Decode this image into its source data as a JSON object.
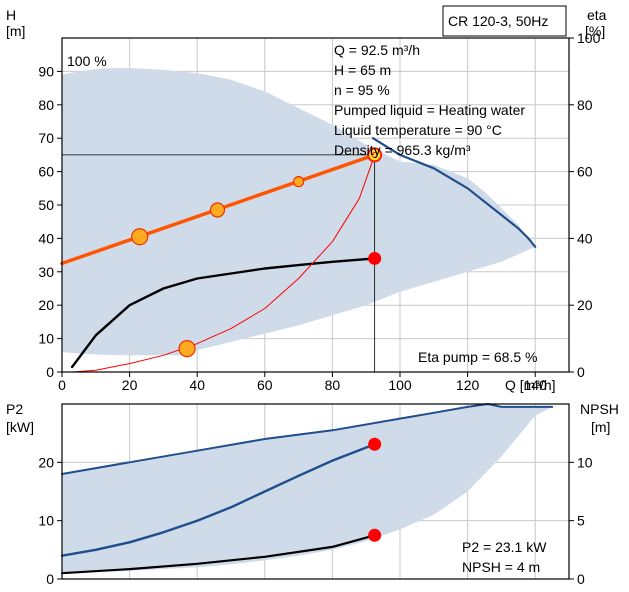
{
  "chart_data": [
    {
      "type": "line",
      "title": "CR 120-3, 50Hz",
      "xlabel": "Q [m³/h]",
      "ylabel_left": [
        "H",
        "[m]"
      ],
      "ylabel_right": [
        "eta",
        "[%]"
      ],
      "xlim": [
        0,
        150
      ],
      "ylim_left": [
        0,
        100
      ],
      "ylim_right": [
        0,
        100
      ],
      "x_ticks": [
        "0",
        "20",
        "40",
        "60",
        "80",
        "100",
        "120",
        "140"
      ],
      "y_ticks_left": [
        "0",
        "10",
        "20",
        "30",
        "40",
        "50",
        "60",
        "70",
        "80",
        "90"
      ],
      "y_ticks_right": [
        "0",
        "20",
        "40",
        "60",
        "80",
        "100"
      ],
      "grid": true,
      "speed_label": "100 %",
      "operating_point": {
        "lines": [
          "Q = 92.5 m³/h",
          "H = 65 m",
          "n = 95 %",
          "Pumped liquid = Heating water",
          "Liquid temperature = 90 °C",
          "Density = 965.3 kg/m³"
        ],
        "q": 92.5,
        "h": 65
      },
      "eta_pump_label": "Eta pump = 68.5 %",
      "band": {
        "upper": [
          [
            0,
            89
          ],
          [
            5,
            90
          ],
          [
            10,
            90.7
          ],
          [
            15,
            91
          ],
          [
            20,
            91
          ],
          [
            30,
            90.5
          ],
          [
            40,
            89.5
          ],
          [
            50,
            87.5
          ],
          [
            60,
            84
          ],
          [
            70,
            79
          ],
          [
            80,
            74
          ],
          [
            90,
            68
          ],
          [
            100,
            63
          ],
          [
            110,
            62
          ],
          [
            120,
            58
          ],
          [
            125,
            54
          ],
          [
            130,
            49
          ],
          [
            135,
            44
          ],
          [
            138,
            40
          ],
          [
            140,
            37.5
          ]
        ],
        "lower": [
          [
            140,
            37.5
          ],
          [
            130,
            33
          ],
          [
            120,
            30
          ],
          [
            110,
            27
          ],
          [
            100,
            24
          ],
          [
            90,
            20
          ],
          [
            80,
            17
          ],
          [
            70,
            14
          ],
          [
            60,
            11.5
          ],
          [
            50,
            9
          ],
          [
            40,
            6.5
          ],
          [
            35,
            5
          ],
          [
            25,
            5
          ],
          [
            15,
            5
          ],
          [
            5,
            5.5
          ],
          [
            0,
            6
          ]
        ]
      },
      "series": [
        {
          "role": "max_curve",
          "color": "#1f4e8c",
          "points": [
            [
              92,
              70
            ],
            [
              100,
              65
            ],
            [
              110,
              61
            ],
            [
              120,
              55
            ],
            [
              125,
              51
            ],
            [
              130,
              47
            ],
            [
              135,
              43
            ],
            [
              138,
              40
            ],
            [
              140,
              37.5
            ]
          ]
        },
        {
          "role": "system_curve",
          "color": "#ff5500",
          "points": [
            [
              0,
              32.5
            ],
            [
              92.5,
              65
            ]
          ]
        },
        {
          "role": "eta_curve",
          "color": "#000000",
          "points": [
            [
              3,
              1.5
            ],
            [
              10,
              11
            ],
            [
              20,
              20
            ],
            [
              30,
              25
            ],
            [
              40,
              28
            ],
            [
              50,
              29.5
            ],
            [
              60,
              31
            ],
            [
              70,
              32
            ],
            [
              80,
              33
            ],
            [
              92.5,
              34
            ]
          ]
        },
        {
          "role": "npsh_curve",
          "color": "#ff0000",
          "points": [
            [
              3,
              0
            ],
            [
              10,
              0.5
            ],
            [
              20,
              2.5
            ],
            [
              30,
              5
            ],
            [
              40,
              8.5
            ],
            [
              50,
              13
            ],
            [
              60,
              19
            ],
            [
              70,
              28
            ],
            [
              80,
              39
            ],
            [
              88,
              52
            ],
            [
              92.5,
              65
            ]
          ]
        }
      ],
      "markers": [
        {
          "x": 23,
          "y": 40.5,
          "style": "orange-large"
        },
        {
          "x": 46,
          "y": 48.5,
          "style": "orange-medium"
        },
        {
          "x": 70,
          "y": 57,
          "style": "orange-small"
        },
        {
          "x": 92.5,
          "y": 65,
          "style": "yellow-ring"
        },
        {
          "x": 37,
          "y": 7,
          "style": "orange-large"
        },
        {
          "x": 92.5,
          "y": 34,
          "style": "red"
        }
      ]
    },
    {
      "type": "line",
      "ylabel_left": [
        "P2",
        "[kW]"
      ],
      "ylabel_right": [
        "NPSH",
        "[m]"
      ],
      "xlim": [
        0,
        150
      ],
      "ylim_left": [
        0,
        30
      ],
      "ylim_right": [
        0,
        15
      ],
      "y_ticks_left": [
        "0",
        "10",
        "20"
      ],
      "y_ticks_right": [
        "0",
        "5",
        "10"
      ],
      "grid": true,
      "info_lines": [
        "P2 = 23.1 kW",
        "NPSH = 4 m"
      ],
      "band": {
        "upper": [
          [
            0,
            18
          ],
          [
            20,
            20
          ],
          [
            40,
            22
          ],
          [
            60,
            24
          ],
          [
            80,
            25.5
          ],
          [
            100,
            27.5
          ],
          [
            110,
            28.5
          ],
          [
            120,
            29.5
          ],
          [
            126,
            30
          ],
          [
            130,
            29.5
          ],
          [
            140,
            29.5
          ],
          [
            145,
            29.5
          ]
        ],
        "lower": [
          [
            145,
            29.5
          ],
          [
            140,
            28
          ],
          [
            130,
            21
          ],
          [
            120,
            15
          ],
          [
            110,
            11
          ],
          [
            100,
            8.5
          ],
          [
            90,
            6.5
          ],
          [
            80,
            5
          ],
          [
            70,
            4
          ],
          [
            60,
            3.2
          ],
          [
            50,
            2.5
          ],
          [
            40,
            2
          ],
          [
            20,
            1.4
          ],
          [
            0,
            1
          ]
        ]
      },
      "series": [
        {
          "role": "p2_max",
          "color": "#1f4e8c",
          "points": [
            [
              0,
              18
            ],
            [
              20,
              20
            ],
            [
              40,
              22
            ],
            [
              60,
              24
            ],
            [
              80,
              25.5
            ],
            [
              100,
              27.5
            ],
            [
              110,
              28.5
            ],
            [
              120,
              29.5
            ],
            [
              126,
              30
            ],
            [
              130,
              29.5
            ],
            [
              140,
              29.5
            ],
            [
              145,
              29.5
            ]
          ]
        },
        {
          "role": "p2_curve",
          "color": "#1f4e8c",
          "points": [
            [
              0,
              4
            ],
            [
              10,
              5
            ],
            [
              20,
              6.3
            ],
            [
              30,
              8
            ],
            [
              40,
              10
            ],
            [
              50,
              12.3
            ],
            [
              60,
              15
            ],
            [
              70,
              17.7
            ],
            [
              80,
              20.3
            ],
            [
              92.5,
              23.1
            ]
          ]
        },
        {
          "role": "npsh_curve",
          "color": "#000000",
          "points": [
            [
              0,
              1
            ],
            [
              20,
              1.7
            ],
            [
              40,
              2.6
            ],
            [
              60,
              3.8
            ],
            [
              80,
              5.5
            ],
            [
              92.5,
              7.5
            ]
          ]
        }
      ],
      "markers": [
        {
          "x": 92.5,
          "y": 23.1,
          "style": "red"
        },
        {
          "x": 92.5,
          "y": 7.5,
          "style": "red"
        }
      ]
    }
  ]
}
